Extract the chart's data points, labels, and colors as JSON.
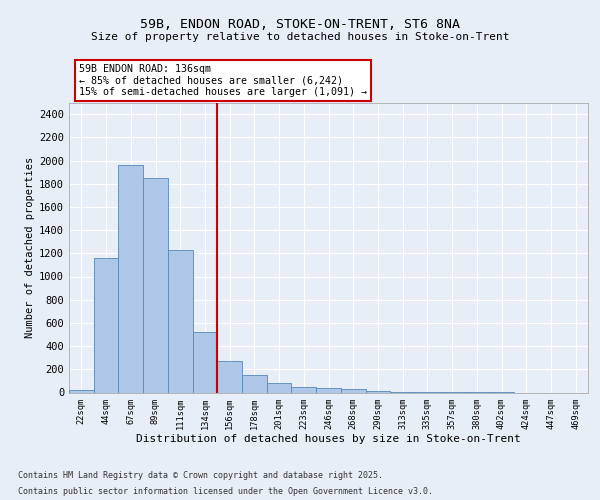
{
  "title1": "59B, ENDON ROAD, STOKE-ON-TRENT, ST6 8NA",
  "title2": "Size of property relative to detached houses in Stoke-on-Trent",
  "xlabel": "Distribution of detached houses by size in Stoke-on-Trent",
  "ylabel": "Number of detached properties",
  "categories": [
    "22sqm",
    "44sqm",
    "67sqm",
    "89sqm",
    "111sqm",
    "134sqm",
    "156sqm",
    "178sqm",
    "201sqm",
    "223sqm",
    "246sqm",
    "268sqm",
    "290sqm",
    "313sqm",
    "335sqm",
    "357sqm",
    "380sqm",
    "402sqm",
    "424sqm",
    "447sqm",
    "469sqm"
  ],
  "values": [
    25,
    1160,
    1960,
    1850,
    1230,
    520,
    275,
    155,
    80,
    47,
    35,
    28,
    10,
    5,
    3,
    2,
    1,
    1,
    0,
    0,
    0
  ],
  "bar_color": "#aec6e8",
  "bar_edge_color": "#5588bb",
  "vline_x": 5.5,
  "vline_color": "#cc0000",
  "annotation_text": "59B ENDON ROAD: 136sqm\n← 85% of detached houses are smaller (6,242)\n15% of semi-detached houses are larger (1,091) →",
  "annotation_box_color": "#cc0000",
  "ylim": [
    0,
    2500
  ],
  "yticks": [
    0,
    200,
    400,
    600,
    800,
    1000,
    1200,
    1400,
    1600,
    1800,
    2000,
    2200,
    2400
  ],
  "bg_color": "#e8eef8",
  "plot_bg_color": "#e8eef8",
  "grid_color": "#ffffff",
  "footer1": "Contains HM Land Registry data © Crown copyright and database right 2025.",
  "footer2": "Contains public sector information licensed under the Open Government Licence v3.0."
}
